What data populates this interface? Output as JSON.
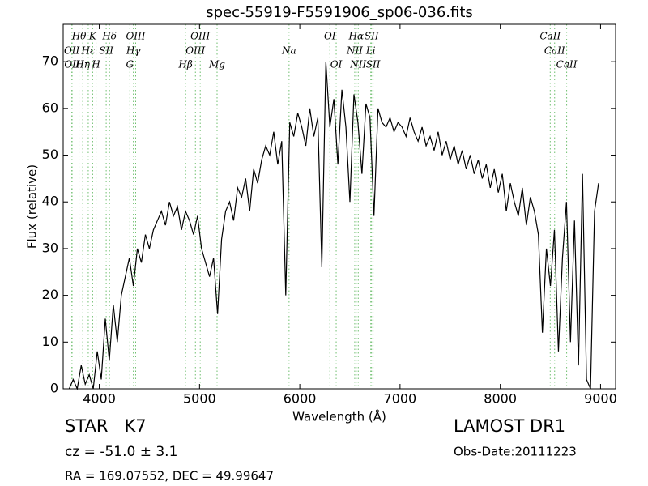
{
  "chart_data": {
    "type": "line",
    "title": "spec-55919-F5591906_sp06-036.fits",
    "xlabel": "Wavelength (Å)",
    "ylabel": "Flux (relative)",
    "color": "#000000",
    "line_color": "#6fbf6f",
    "xlim": [
      3640,
      9150
    ],
    "ylim": [
      0,
      78
    ],
    "xticks": [
      4000,
      5000,
      6000,
      7000,
      8000,
      9000
    ],
    "yticks": [
      0,
      10,
      20,
      30,
      40,
      50,
      60,
      70
    ],
    "x": [
      3700,
      3740,
      3780,
      3820,
      3860,
      3900,
      3940,
      3980,
      4020,
      4060,
      4100,
      4140,
      4180,
      4220,
      4260,
      4300,
      4340,
      4380,
      4420,
      4460,
      4500,
      4540,
      4580,
      4620,
      4660,
      4700,
      4740,
      4780,
      4820,
      4860,
      4900,
      4940,
      4980,
      5020,
      5060,
      5100,
      5140,
      5180,
      5220,
      5260,
      5300,
      5340,
      5380,
      5420,
      5460,
      5500,
      5540,
      5580,
      5620,
      5660,
      5700,
      5740,
      5780,
      5820,
      5860,
      5900,
      5940,
      5980,
      6020,
      6060,
      6100,
      6140,
      6180,
      6220,
      6260,
      6300,
      6340,
      6380,
      6420,
      6460,
      6500,
      6540,
      6580,
      6620,
      6660,
      6700,
      6740,
      6780,
      6820,
      6860,
      6900,
      6940,
      6980,
      7020,
      7060,
      7100,
      7140,
      7180,
      7220,
      7260,
      7300,
      7340,
      7380,
      7420,
      7460,
      7500,
      7540,
      7580,
      7620,
      7660,
      7700,
      7740,
      7780,
      7820,
      7860,
      7900,
      7940,
      7980,
      8020,
      8060,
      8100,
      8140,
      8180,
      8220,
      8260,
      8300,
      8340,
      8380,
      8420,
      8460,
      8500,
      8540,
      8580,
      8620,
      8660,
      8700,
      8740,
      8780,
      8820,
      8860,
      8900,
      8940,
      8980
    ],
    "values": [
      0,
      2,
      0,
      5,
      1,
      3,
      0,
      8,
      2,
      15,
      6,
      18,
      10,
      20,
      24,
      28,
      22,
      30,
      27,
      33,
      30,
      34,
      36,
      38,
      35,
      40,
      37,
      39,
      34,
      38,
      36,
      33,
      37,
      30,
      27,
      24,
      28,
      16,
      32,
      38,
      40,
      36,
      43,
      41,
      45,
      38,
      47,
      44,
      49,
      52,
      50,
      55,
      48,
      53,
      20,
      57,
      54,
      59,
      56,
      52,
      60,
      54,
      58,
      26,
      70,
      56,
      62,
      48,
      64,
      56,
      40,
      63,
      57,
      46,
      61,
      58,
      37,
      60,
      57,
      56,
      58,
      55,
      57,
      56,
      54,
      58,
      55,
      53,
      56,
      52,
      54,
      51,
      55,
      50,
      53,
      49,
      52,
      48,
      51,
      47,
      50,
      46,
      49,
      45,
      48,
      43,
      47,
      42,
      46,
      38,
      44,
      40,
      37,
      43,
      35,
      41,
      38,
      33,
      12,
      30,
      22,
      34,
      8,
      28,
      40,
      10,
      36,
      5,
      46,
      2,
      0,
      38,
      44
    ],
    "lines": [
      {
        "label": "OII",
        "wavelength": 3726
      },
      {
        "label": "OII",
        "wavelength": 3729
      },
      {
        "label": "Hθ",
        "wavelength": 3798
      },
      {
        "label": "Hη",
        "wavelength": 3835
      },
      {
        "label": "Hε",
        "wavelength": 3890
      },
      {
        "label": "K",
        "wavelength": 3934
      },
      {
        "label": "H",
        "wavelength": 3968
      },
      {
        "label": "SII",
        "wavelength": 4069
      },
      {
        "label": "Hδ",
        "wavelength": 4102
      },
      {
        "label": "G",
        "wavelength": 4305
      },
      {
        "label": "Hγ",
        "wavelength": 4340
      },
      {
        "label": "OIII",
        "wavelength": 4363
      },
      {
        "label": "Hβ",
        "wavelength": 4861
      },
      {
        "label": "OIII",
        "wavelength": 4959
      },
      {
        "label": "OIII",
        "wavelength": 5007
      },
      {
        "label": "Mg",
        "wavelength": 5175
      },
      {
        "label": "Na",
        "wavelength": 5893
      },
      {
        "label": "OI",
        "wavelength": 6300
      },
      {
        "label": "OI",
        "wavelength": 6363
      },
      {
        "label": "NII",
        "wavelength": 6548
      },
      {
        "label": "Hα",
        "wavelength": 6563
      },
      {
        "label": "NII",
        "wavelength": 6583
      },
      {
        "label": "Li",
        "wavelength": 6708
      },
      {
        "label": "SII",
        "wavelength": 6716
      },
      {
        "label": "SII",
        "wavelength": 6731
      },
      {
        "label": "CaII",
        "wavelength": 8498
      },
      {
        "label": "CaII",
        "wavelength": 8542
      },
      {
        "label": "CaII",
        "wavelength": 8662
      }
    ]
  },
  "info": {
    "object": "STAR   K7",
    "cz": "cz = -51.0 ± 3.1",
    "coords": "RA = 169.07552, DEC = 49.99647",
    "survey": "LAMOST DR1",
    "obs_date": "Obs-Date:20111223"
  }
}
